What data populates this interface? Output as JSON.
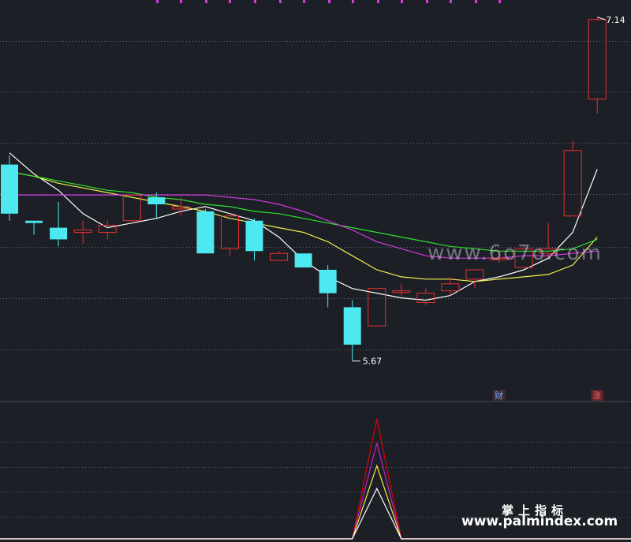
{
  "colors": {
    "background": "#1c1f26",
    "bull": "#e8312f",
    "bear": "#4de8f0",
    "ma5": "#ffffff",
    "ma10": "#f0f04c",
    "ma20": "#2ee02e",
    "ma60": "#d43ae0",
    "grid": "#8a8a9e",
    "badge_cai": "#6fa8ff",
    "badge_zhang": "#ff6a6a"
  },
  "chart_data": [
    {
      "type": "candlestick",
      "price_range": [
        5.5,
        7.2
      ],
      "high_label": "7.14",
      "low_label": "5.67",
      "candles": [
        {
          "o": 6.51,
          "h": 6.55,
          "l": 6.27,
          "c": 6.3
        },
        {
          "o": 6.27,
          "h": 6.27,
          "l": 6.21,
          "c": 6.26
        },
        {
          "o": 6.24,
          "h": 6.35,
          "l": 6.16,
          "c": 6.19
        },
        {
          "o": 6.22,
          "h": 6.27,
          "l": 6.17,
          "c": 6.23
        },
        {
          "o": 6.22,
          "h": 6.27,
          "l": 6.19,
          "c": 6.25
        },
        {
          "o": 6.27,
          "h": 6.38,
          "l": 6.27,
          "c": 6.38
        },
        {
          "o": 6.37,
          "h": 6.39,
          "l": 6.28,
          "c": 6.34
        },
        {
          "o": 6.32,
          "h": 6.37,
          "l": 6.29,
          "c": 6.33
        },
        {
          "o": 6.31,
          "h": 6.32,
          "l": 6.13,
          "c": 6.13
        },
        {
          "o": 6.15,
          "h": 6.3,
          "l": 6.12,
          "c": 6.29
        },
        {
          "o": 6.27,
          "h": 6.28,
          "l": 6.1,
          "c": 6.14
        },
        {
          "o": 6.1,
          "h": 6.14,
          "l": 6.1,
          "c": 6.13
        },
        {
          "o": 6.13,
          "h": 6.13,
          "l": 6.07,
          "c": 6.07
        },
        {
          "o": 6.06,
          "h": 6.08,
          "l": 5.9,
          "c": 5.96
        },
        {
          "o": 5.9,
          "h": 5.93,
          "l": 5.67,
          "c": 5.74
        },
        {
          "o": 5.82,
          "h": 5.98,
          "l": 5.82,
          "c": 5.98
        },
        {
          "o": 5.97,
          "h": 6.0,
          "l": 5.95,
          "c": 5.97
        },
        {
          "o": 5.92,
          "h": 5.98,
          "l": 5.91,
          "c": 5.96
        },
        {
          "o": 5.97,
          "h": 6.03,
          "l": 5.95,
          "c": 6.0
        },
        {
          "o": 6.02,
          "h": 6.06,
          "l": 5.98,
          "c": 6.06
        },
        {
          "o": 6.11,
          "h": 6.14,
          "l": 6.09,
          "c": 6.11
        },
        {
          "o": 6.07,
          "h": 6.16,
          "l": 6.07,
          "c": 6.15
        },
        {
          "o": 6.13,
          "h": 6.26,
          "l": 6.11,
          "c": 6.15
        },
        {
          "o": 6.29,
          "h": 6.61,
          "l": 6.29,
          "c": 6.57
        },
        {
          "o": 6.79,
          "h": 7.14,
          "l": 6.73,
          "c": 7.13
        }
      ],
      "ma_lines": [
        {
          "key": "ma5",
          "values": [
            6.56,
            6.47,
            6.4,
            6.3,
            6.24,
            6.26,
            6.28,
            6.31,
            6.33,
            6.3,
            6.27,
            6.2,
            6.1,
            6.03,
            5.98,
            5.96,
            5.94,
            5.93,
            5.95,
            6.01,
            6.03,
            6.06,
            6.11,
            6.22,
            6.49
          ]
        },
        {
          "key": "ma10",
          "values": [
            6.48,
            6.46,
            6.43,
            6.41,
            6.39,
            6.37,
            6.35,
            6.33,
            6.31,
            6.28,
            6.26,
            6.24,
            6.22,
            6.18,
            6.12,
            6.06,
            6.03,
            6.02,
            6.02,
            6.01,
            6.02,
            6.03,
            6.04,
            6.08,
            6.2
          ]
        },
        {
          "key": "ma20",
          "values": [
            6.48,
            6.46,
            6.44,
            6.42,
            6.4,
            6.39,
            6.37,
            6.36,
            6.34,
            6.33,
            6.31,
            6.3,
            6.28,
            6.26,
            6.24,
            6.22,
            6.2,
            6.18,
            6.16,
            6.15,
            6.14,
            6.14,
            6.14,
            6.15,
            6.19
          ]
        },
        {
          "key": "ma60",
          "values": [
            6.38,
            6.38,
            6.38,
            6.38,
            6.38,
            6.38,
            6.38,
            6.38,
            6.38,
            6.37,
            6.36,
            6.34,
            6.31,
            6.27,
            6.23,
            6.18,
            6.15,
            6.12,
            6.11,
            6.11,
            6.11,
            6.12,
            6.12,
            6.13,
            6.14
          ]
        }
      ],
      "badges": [
        {
          "text": "财",
          "candle": 20,
          "colorKey": "badge_cai"
        },
        {
          "text": "涨",
          "candle": 24,
          "colorKey": "badge_zhang"
        }
      ]
    },
    {
      "type": "line",
      "ylim": [
        0,
        1
      ],
      "series": [
        {
          "color": "#e00000",
          "values": [
            0,
            0,
            0,
            0,
            0,
            0,
            0,
            0,
            0,
            0,
            0,
            0,
            0,
            0,
            0,
            1.0,
            0,
            0,
            0,
            0,
            0,
            0,
            0,
            0,
            0
          ]
        },
        {
          "color": "#c020d0",
          "values": [
            0,
            0,
            0,
            0,
            0,
            0,
            0,
            0,
            0,
            0,
            0,
            0,
            0,
            0,
            0,
            0.8,
            0,
            0,
            0,
            0,
            0,
            0,
            0,
            0,
            0
          ]
        },
        {
          "color": "#f0f040",
          "values": [
            0,
            0,
            0,
            0,
            0,
            0,
            0,
            0,
            0,
            0,
            0,
            0,
            0,
            0,
            0,
            0.61,
            0,
            0,
            0,
            0,
            0,
            0,
            0,
            0,
            0
          ]
        },
        {
          "color": "#ffffff",
          "values": [
            0,
            0,
            0,
            0,
            0,
            0,
            0,
            0,
            0,
            0,
            0,
            0,
            0,
            0,
            0,
            0.42,
            0,
            0,
            0,
            0,
            0,
            0,
            0,
            0,
            0
          ]
        }
      ]
    }
  ],
  "watermark": {
    "url1": "www.6o7o.com",
    "brand": "掌上指标",
    "url2": "www.palmindex.com"
  }
}
